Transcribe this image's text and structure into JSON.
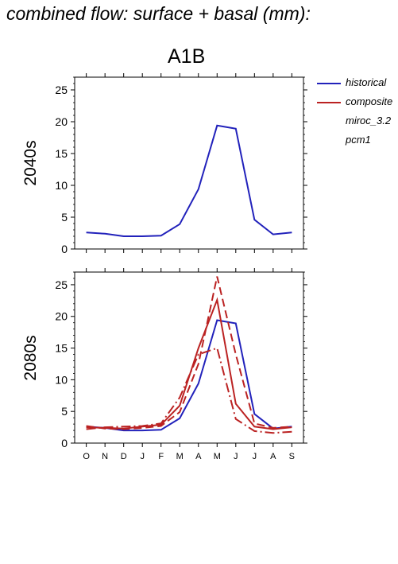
{
  "title": "combined flow: surface + basal (mm):",
  "scenario": "A1B",
  "colors": {
    "historical": "#2222bb",
    "projection": "#bb2222"
  },
  "legend": [
    {
      "name": "historical",
      "color": "#2222bb",
      "dash": "solid"
    },
    {
      "name": "composite",
      "color": "#bb2222",
      "dash": "solid"
    },
    {
      "name": "miroc_3.2",
      "color": "#bb2222",
      "dash": "dashdot"
    },
    {
      "name": "pcm1",
      "color": "#bb2222",
      "dash": "dashed"
    }
  ],
  "chart_data": [
    {
      "type": "line",
      "panel": "2040s",
      "ylabel": "2040s",
      "categories": [
        "O",
        "N",
        "D",
        "J",
        "F",
        "M",
        "A",
        "M",
        "J",
        "J",
        "A",
        "S"
      ],
      "ylim": [
        0,
        27
      ],
      "yticks": [
        0,
        5,
        10,
        15,
        20,
        25
      ],
      "show_x_tick_labels": false,
      "series": [
        {
          "name": "historical",
          "color": "#2222bb",
          "dash": "solid",
          "values": [
            2.6,
            2.4,
            2.0,
            2.0,
            2.1,
            3.9,
            9.4,
            19.4,
            18.9,
            4.6,
            2.3,
            2.6
          ]
        }
      ]
    },
    {
      "type": "line",
      "panel": "2080s",
      "ylabel": "2080s",
      "categories": [
        "O",
        "N",
        "D",
        "J",
        "F",
        "M",
        "A",
        "M",
        "J",
        "J",
        "A",
        "S"
      ],
      "ylim": [
        0,
        27
      ],
      "yticks": [
        0,
        5,
        10,
        15,
        20,
        25
      ],
      "show_x_tick_labels": true,
      "series": [
        {
          "name": "historical",
          "color": "#2222bb",
          "dash": "solid",
          "values": [
            2.6,
            2.4,
            2.0,
            2.0,
            2.1,
            3.9,
            9.4,
            19.4,
            18.9,
            4.6,
            2.3,
            2.6
          ]
        },
        {
          "name": "composite",
          "color": "#bb2222",
          "dash": "solid",
          "values": [
            2.5,
            2.4,
            2.3,
            2.6,
            2.9,
            5.9,
            15.0,
            22.6,
            6.2,
            2.6,
            2.2,
            2.5
          ]
        },
        {
          "name": "miroc_3.2",
          "color": "#bb2222",
          "dash": "dashdot",
          "values": [
            2.2,
            2.5,
            2.6,
            2.7,
            3.1,
            7.2,
            14.0,
            15.0,
            3.8,
            1.9,
            1.6,
            1.8
          ]
        },
        {
          "name": "pcm1",
          "color": "#bb2222",
          "dash": "dashed",
          "values": [
            2.7,
            2.3,
            2.2,
            2.4,
            2.7,
            4.9,
            12.5,
            26.3,
            14.0,
            3.1,
            2.4,
            2.6
          ]
        }
      ]
    }
  ]
}
